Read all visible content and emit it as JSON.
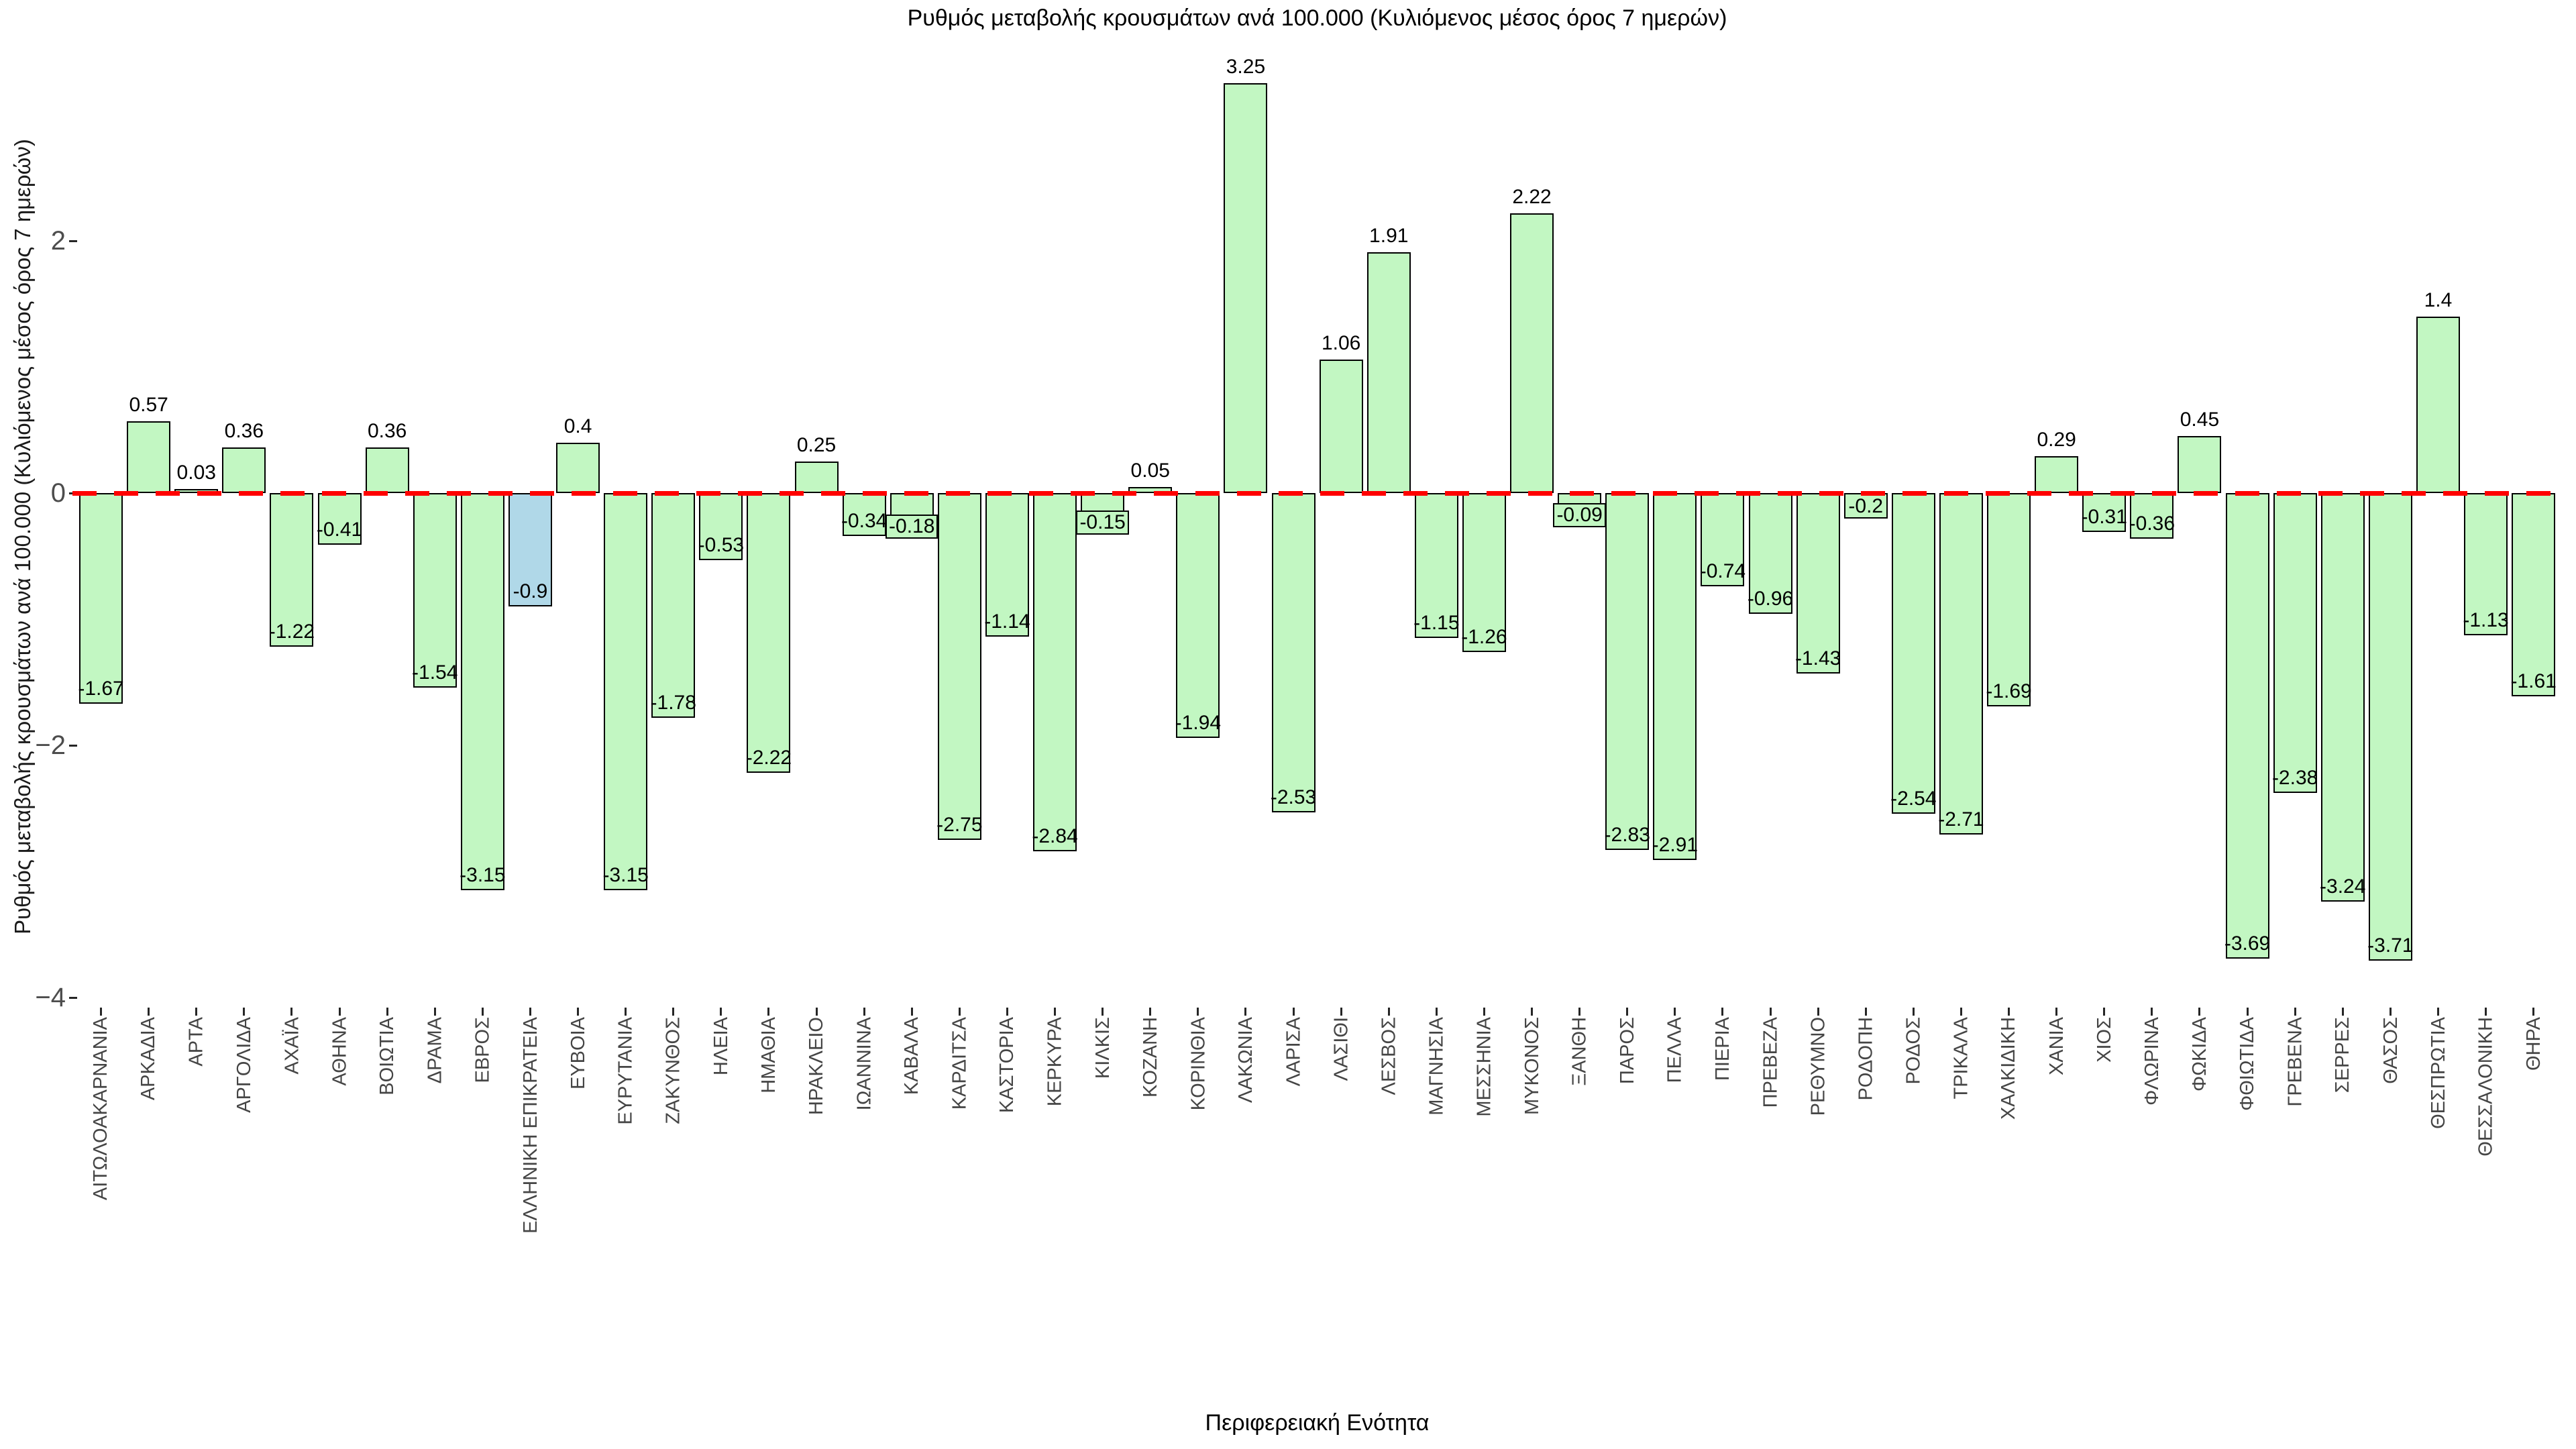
{
  "title": "Ρυθμός μεταβολής κρουσμάτων ανά 100.000 (Κυλιόμενος μέσος όρος 7 ημερών)",
  "axes": {
    "xlabel": "Περιφερειακή Ενότητα",
    "ylabel": "Ρυθμός μεταβολής κρουσμάτων ανά 100.000 (Κυλιόμενος μέσος όρος 7 ημερών)",
    "ytick_labels": [
      "2",
      "0",
      "−2",
      "−4"
    ],
    "ytick_values": [
      2,
      0,
      -2,
      -4
    ]
  },
  "chart_data": {
    "type": "bar",
    "title": "Ρυθμός μεταβολής κρουσμάτων ανά 100.000 (Κυλιόμενος μέσος όρος 7 ημερών)",
    "xlabel": "Περιφερειακή Ενότητα",
    "ylabel": "Ρυθμός μεταβολής κρουσμάτων ανά 100.000 (Κυλιόμενος μέσος όρος 7 ημερών)",
    "ylim": [
      -4.2,
      3.56
    ],
    "grid": false,
    "legend_position": "none",
    "zero_line": {
      "value": 0,
      "style": "dashed",
      "color": "#ff0000"
    },
    "bar_colors": {
      "default": "#c2f7c2",
      "highlight": "#b0d8e8",
      "border": "#000000"
    },
    "highlight_category": "ΕΛΛΗΝΙΚΗ ΕΠΙΚΡΑΤΕΙΑ",
    "categories": [
      "ΑΙΤΩΛΟΑΚΑΡΝΑΝΙΑ",
      "ΑΡΚΑΔΙΑ",
      "ΑΡΤΑ",
      "ΑΡΓΟΛΙΔΑ",
      "ΑΧΑΪΑ",
      "ΑΘΗΝΑ",
      "ΒΟΙΩΤΙΑ",
      "ΔΡΑΜΑ",
      "ΕΒΡΟΣ",
      "ΕΛΛΗΝΙΚΗ ΕΠΙΚΡΑΤΕΙΑ",
      "ΕΥΒΟΙΑ",
      "ΕΥΡΥΤΑΝΙΑ",
      "ΖΑΚΥΝΘΟΣ",
      "ΗΛΕΙΑ",
      "ΗΜΑΘΙΑ",
      "ΗΡΑΚΛΕΙΟ",
      "ΙΩΑΝΝΙΝΑ",
      "ΚΑΒΑΛΑ",
      "ΚΑΡΔΙΤΣΑ",
      "ΚΑΣΤΟΡΙΑ",
      "ΚΕΡΚΥΡΑ",
      "ΚΙΛΚΙΣ",
      "ΚΟΖΑΝΗ",
      "ΚΟΡΙΝΘΙΑ",
      "ΛΑΚΩΝΙΑ",
      "ΛΑΡΙΣΑ",
      "ΛΑΣΙΘΙ",
      "ΛΕΣΒΟΣ",
      "ΜΑΓΝΗΣΙΑ",
      "ΜΕΣΣΗΝΙΑ",
      "ΜΥΚΟΝΟΣ",
      "ΞΑΝΘΗ",
      "ΠΑΡΟΣ",
      "ΠΕΛΛΑ",
      "ΠΙΕΡΙΑ",
      "ΠΡΕΒΕΖΑ",
      "ΡΕΘΥΜΝΟ",
      "ΡΟΔΟΠΗ",
      "ΡΟΔΟΣ",
      "ΤΡΙΚΑΛΑ",
      "ΧΑΛΚΙΔΙΚΗ",
      "ΧΑΝΙΑ",
      "ΧΙΟΣ",
      "ΦΛΩΡΙΝΑ",
      "ΦΩΚΙΔΑ",
      "ΦΘΙΩΤΙΔΑ",
      "ΓΡΕΒΕΝΑ",
      "ΣΕΡΡΕΣ",
      "ΘΑΣΟΣ",
      "ΘΕΣΠΡΩΤΙΑ",
      "ΘΕΣΣΑΛΟΝΙΚΗ",
      "ΘΗΡΑ"
    ],
    "values": [
      -1.67,
      0.57,
      0.03,
      0.36,
      -1.22,
      -0.41,
      0.36,
      -1.54,
      -3.15,
      -0.9,
      0.4,
      -3.15,
      -1.78,
      -0.53,
      -2.22,
      0.25,
      -0.34,
      -0.18,
      -2.75,
      -1.14,
      -2.84,
      -0.15,
      0.05,
      -1.94,
      3.25,
      -2.53,
      1.06,
      1.91,
      -1.15,
      -1.26,
      2.22,
      -0.09,
      -2.83,
      -2.91,
      -0.74,
      -0.96,
      -1.43,
      -0.2,
      -2.54,
      -2.71,
      -1.69,
      0.29,
      -0.31,
      -0.36,
      0.45,
      -3.69,
      -2.38,
      -3.24,
      -3.71,
      1.4,
      -1.13,
      -1.61
    ],
    "value_labels": [
      "-1.67",
      "0.57",
      "0.03",
      "0.36",
      "-1.22",
      "-0.41",
      "0.36",
      "-1.54",
      "-3.15",
      "-0.9",
      "0.4",
      "-3.15",
      "-1.78",
      "-0.53",
      "-2.22",
      "0.25",
      "-0.34",
      "-0.18",
      "-2.75",
      "-1.14",
      "-2.84",
      "-0.15",
      "0.05",
      "-1.94",
      "3.25",
      "-2.53",
      "1.06",
      "1.91",
      "-1.15",
      "-1.26",
      "2.22",
      "-0.09",
      "-2.83",
      "-2.91",
      "-0.74",
      "-0.96",
      "-1.43",
      "-0.2",
      "-2.54",
      "-2.71",
      "-1.69",
      "0.29",
      "-0.31",
      "-0.36",
      "0.45",
      "-3.69",
      "-2.38",
      "-3.24",
      "-3.71",
      "1.4",
      "-1.13",
      "-1.61"
    ]
  }
}
